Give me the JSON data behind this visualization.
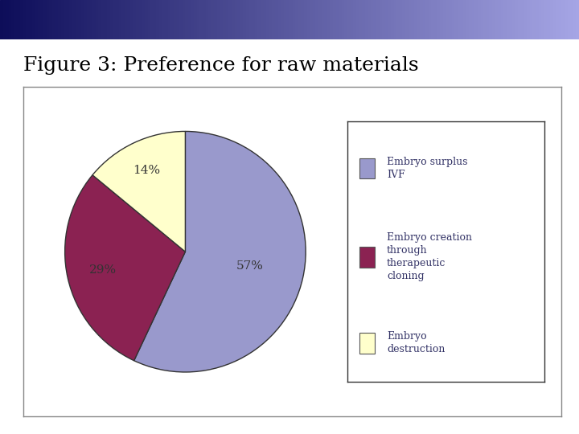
{
  "title": "Figure 3: Preference for raw materials",
  "slices": [
    57,
    29,
    14
  ],
  "slice_labels": [
    "57%",
    "29%",
    "14%"
  ],
  "colors": [
    "#9999CC",
    "#8B2252",
    "#FFFFCC"
  ],
  "legend_labels": [
    "Embryo surplus\nIVF",
    "Embryo creation\nthrough\ntherapeutic\ncloning",
    "Embryo\ndestruction"
  ],
  "legend_colors": [
    "#9999CC",
    "#8B2252",
    "#FFFFCC"
  ],
  "startangle": 90,
  "title_fontsize": 18,
  "label_fontsize": 11,
  "legend_fontsize": 9
}
